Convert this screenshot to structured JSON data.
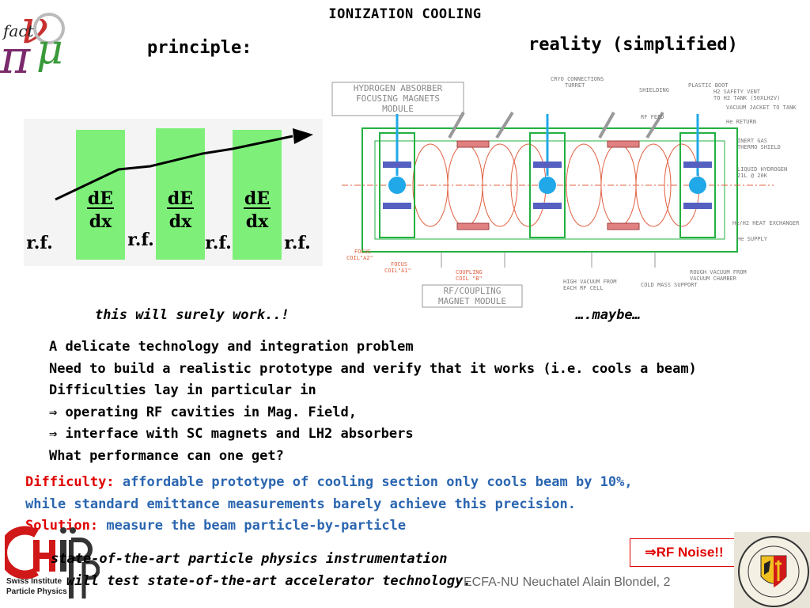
{
  "title": "IONIZATION  COOLING",
  "principle_label": "principle:",
  "reality_label": "reality (simplified)",
  "principle_diagram": {
    "absorber_label_top": "dE",
    "absorber_label_bottom": "dx",
    "rf_label": "r.f."
  },
  "caption_left": "this will surely work..!",
  "caption_right": "….maybe…",
  "body_lines": [
    "A delicate technology and integration problem",
    "Need to build a realistic prototype and verify that it works (i.e. cools a beam)",
    "Difficulties lay in particular in",
    "⇒ operating RF cavities in Mag. Field,",
    "⇒ interface with SC magnets and LH2 absorbers",
    "What performance can one get?"
  ],
  "difficulty": {
    "label": "Difficulty:",
    "text1": " affordable prototype of cooling section only cools beam by 10%,",
    "text2": "while standard emittance measurements barely achieve this precision.",
    "solution_label": "Solution:",
    "solution_text": " measure the beam particle-by-particle"
  },
  "bottom_lines": [
    "state-of-the-art particle physics instrumentation",
    "will test state-of-the-art accelerator technology."
  ],
  "footer": "ECFA-NU Neuchatel   Alain Blondel, 2",
  "rf_noise": "⇒RF Noise!!",
  "logo_nufact": "fact",
  "institute_line1": "Swiss Institute",
  "institute_line2": "Particle Physics",
  "reality_diagram": {
    "box_top": [
      "HYDROGEN ABSORBER",
      "FOCUSING MAGNETS",
      "MODULE"
    ],
    "box_bottom": [
      "RF/COUPLING",
      "MAGNET MODULE"
    ],
    "labels_top": [
      "CRYO CONNECTIONS",
      "TURRET",
      "SHIELDING",
      "PLASTIC BOOT",
      "H2 SAFETY VENT",
      "TO H2 TANK (50XLH2V)",
      "VACUUM JACKET TO TANK",
      "RF FEED",
      "He RETURN",
      "INERT GAS",
      "THERMO SHIELD",
      "LIQUID HYDROGEN",
      "21L @ 20K"
    ],
    "labels_right": [
      "He/H2 HEAT EXCHANGER",
      "He SUPPLY",
      "ROUGH VACUUM FROM",
      "VACUUM CHAMBER",
      "COLD MASS SUPPORT"
    ],
    "labels_bottom": [
      "FOCUS",
      "COIL\"A2\"",
      "FOCUS",
      "COIL\"A1\"",
      "COUPLING",
      "COIL \"B\"",
      "HIGH VACUUM FROM",
      "EACH RF CELL"
    ]
  },
  "colors": {
    "absorber_green": "#7ef07a",
    "red": "#e00000",
    "blue": "#2b66b0",
    "diagram_green": "#22b040",
    "diagram_cyan": "#20a8e8",
    "diagram_red": "#e06040"
  }
}
